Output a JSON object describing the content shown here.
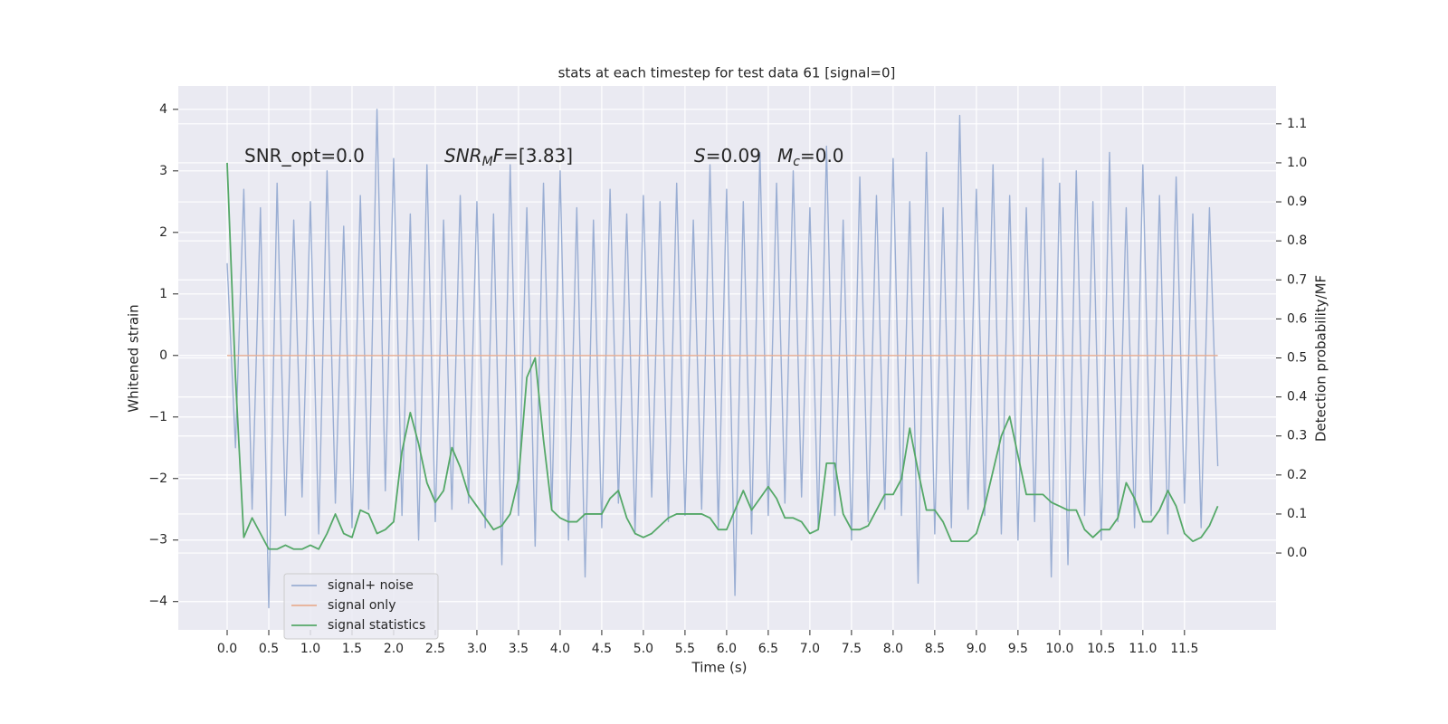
{
  "chart_data": {
    "type": "line",
    "title": "stats at each timestep for test data 61 [signal=0]",
    "xlabel": "Time (s)",
    "ylabel": "Whitened strain",
    "y2label": "Detection probability/MF",
    "annotations": [
      [
        {
          "text": "SNR_opt=0.0"
        }
      ],
      [
        {
          "text": "SNR",
          "style": "italic"
        },
        {
          "text": "M",
          "style": "sub"
        },
        {
          "text": "F",
          "style": "italic"
        },
        {
          "text": "=[3.83]"
        }
      ],
      [
        {
          "text": "S",
          "style": "italic"
        },
        {
          "text": "=0.09"
        }
      ],
      [
        {
          "text": "M",
          "style": "italic"
        },
        {
          "text": "c",
          "style": "sub"
        },
        {
          "text": "=0.0"
        }
      ]
    ],
    "x": [
      0,
      0.1,
      0.2,
      0.3,
      0.4,
      0.5,
      0.6,
      0.7,
      0.8,
      0.9,
      1,
      1.1,
      1.2,
      1.3,
      1.4,
      1.5,
      1.6,
      1.7,
      1.8,
      1.9,
      2,
      2.1,
      2.2,
      2.3,
      2.4,
      2.5,
      2.6,
      2.7,
      2.8,
      2.9,
      3,
      3.1,
      3.2,
      3.3,
      3.4,
      3.5,
      3.6,
      3.7,
      3.8,
      3.9,
      4,
      4.1,
      4.2,
      4.3,
      4.4,
      4.5,
      4.6,
      4.7,
      4.8,
      4.9,
      5,
      5.1,
      5.2,
      5.3,
      5.4,
      5.5,
      5.6,
      5.7,
      5.8,
      5.9,
      6,
      6.1,
      6.2,
      6.3,
      6.4,
      6.5,
      6.6,
      6.7,
      6.8,
      6.9,
      7,
      7.1,
      7.2,
      7.3,
      7.4,
      7.5,
      7.6,
      7.7,
      7.8,
      7.9,
      8,
      8.1,
      8.2,
      8.3,
      8.4,
      8.5,
      8.6,
      8.7,
      8.8,
      8.9,
      9,
      9.1,
      9.2,
      9.3,
      9.4,
      9.5,
      9.6,
      9.7,
      9.8,
      9.9,
      10,
      10.1,
      10.2,
      10.3,
      10.4,
      10.5,
      10.6,
      10.7,
      10.8,
      10.9,
      11,
      11.1,
      11.2,
      11.3,
      11.4,
      11.5,
      11.6,
      11.7,
      11.8,
      11.9
    ],
    "series": [
      {
        "name": "signal+ noise",
        "color": "#9aaed3",
        "axis": "y",
        "values": [
          1.5,
          -1.5,
          2.7,
          -2.5,
          2.4,
          -4.1,
          2.8,
          -2.6,
          2.2,
          -2.3,
          2.5,
          -2.9,
          3.0,
          -2.4,
          2.1,
          -2.8,
          2.6,
          -2.5,
          4.0,
          -2.2,
          3.2,
          -2.6,
          2.3,
          -3.0,
          3.1,
          -2.7,
          2.2,
          -2.5,
          2.6,
          -2.4,
          2.5,
          -2.8,
          2.3,
          -3.4,
          3.1,
          -2.6,
          2.4,
          -3.1,
          2.8,
          -2.5,
          3.0,
          -3.0,
          2.4,
          -3.6,
          2.2,
          -2.8,
          2.7,
          -2.4,
          2.3,
          -2.9,
          2.6,
          -2.3,
          2.5,
          -2.7,
          2.8,
          -2.6,
          2.2,
          -2.5,
          3.1,
          -2.8,
          2.7,
          -3.9,
          2.5,
          -2.9,
          3.3,
          -2.6,
          2.8,
          -2.4,
          3.0,
          -2.3,
          2.4,
          -2.8,
          3.4,
          -2.6,
          2.2,
          -3.0,
          2.9,
          -2.7,
          2.6,
          -2.5,
          3.2,
          -2.6,
          2.5,
          -3.7,
          3.3,
          -2.9,
          2.4,
          -2.8,
          3.9,
          -2.5,
          2.7,
          -2.6,
          3.1,
          -2.9,
          2.6,
          -3.0,
          2.4,
          -2.7,
          3.2,
          -3.6,
          2.8,
          -3.4,
          3.0,
          -2.6,
          2.5,
          -3.0,
          3.3,
          -2.7,
          2.4,
          -2.8,
          3.1,
          -2.6,
          2.6,
          -2.9,
          2.9,
          -2.4,
          2.3,
          -2.8,
          2.4,
          -1.8
        ]
      },
      {
        "name": "signal only",
        "color": "#e8ae93",
        "axis": "y",
        "values": [
          0,
          0,
          0,
          0,
          0,
          0,
          0,
          0,
          0,
          0,
          0,
          0,
          0,
          0,
          0,
          0,
          0,
          0,
          0,
          0,
          0,
          0,
          0,
          0,
          0,
          0,
          0,
          0,
          0,
          0,
          0,
          0,
          0,
          0,
          0,
          0,
          0,
          0,
          0,
          0,
          0,
          0,
          0,
          0,
          0,
          0,
          0,
          0,
          0,
          0,
          0,
          0,
          0,
          0,
          0,
          0,
          0,
          0,
          0,
          0,
          0,
          0,
          0,
          0,
          0,
          0,
          0,
          0,
          0,
          0,
          0,
          0,
          0,
          0,
          0,
          0,
          0,
          0,
          0,
          0,
          0,
          0,
          0,
          0,
          0,
          0,
          0,
          0,
          0,
          0,
          0,
          0,
          0,
          0,
          0,
          0,
          0,
          0,
          0,
          0,
          0,
          0,
          0,
          0,
          0,
          0,
          0,
          0,
          0,
          0,
          0,
          0,
          0,
          0,
          0,
          0,
          0,
          0,
          0,
          0
        ]
      },
      {
        "name": "signal statistics",
        "color": "#55a868",
        "axis": "y2",
        "values": [
          1.0,
          0.45,
          0.04,
          0.09,
          0.05,
          0.01,
          0.01,
          0.02,
          0.01,
          0.01,
          0.02,
          0.01,
          0.05,
          0.1,
          0.05,
          0.04,
          0.11,
          0.1,
          0.05,
          0.06,
          0.08,
          0.26,
          0.36,
          0.28,
          0.18,
          0.13,
          0.16,
          0.27,
          0.22,
          0.15,
          0.12,
          0.09,
          0.06,
          0.07,
          0.1,
          0.19,
          0.45,
          0.5,
          0.29,
          0.11,
          0.09,
          0.08,
          0.08,
          0.1,
          0.1,
          0.1,
          0.14,
          0.16,
          0.09,
          0.05,
          0.04,
          0.05,
          0.07,
          0.09,
          0.1,
          0.1,
          0.1,
          0.1,
          0.09,
          0.06,
          0.06,
          0.11,
          0.16,
          0.11,
          0.14,
          0.17,
          0.14,
          0.09,
          0.09,
          0.08,
          0.05,
          0.06,
          0.23,
          0.23,
          0.1,
          0.06,
          0.06,
          0.07,
          0.11,
          0.15,
          0.15,
          0.19,
          0.32,
          0.21,
          0.11,
          0.11,
          0.08,
          0.03,
          0.03,
          0.03,
          0.05,
          0.12,
          0.21,
          0.3,
          0.35,
          0.25,
          0.15,
          0.15,
          0.15,
          0.13,
          0.12,
          0.11,
          0.11,
          0.06,
          0.04,
          0.06,
          0.06,
          0.09,
          0.18,
          0.14,
          0.08,
          0.08,
          0.11,
          0.16,
          0.12,
          0.05,
          0.03,
          0.04,
          0.07,
          0.12
        ]
      }
    ],
    "xlim": [
      -0.587,
      12.6
    ],
    "xticks": [
      {
        "value": 0,
        "label": "0.0"
      },
      0.5,
      {
        "value": 1,
        "label": "1.0"
      },
      1.5,
      {
        "value": 2,
        "label": "2.0"
      },
      2.5,
      {
        "value": 3,
        "label": "3.0"
      },
      3.5,
      {
        "value": 4,
        "label": "4.0"
      },
      4.5,
      {
        "value": 5,
        "label": "5.0"
      },
      5.5,
      {
        "value": 6,
        "label": "6.0"
      },
      6.5,
      {
        "value": 7,
        "label": "7.0"
      },
      7.5,
      {
        "value": 8,
        "label": "8.0"
      },
      8.5,
      {
        "value": 9,
        "label": "9.0"
      },
      9.5,
      {
        "value": 10,
        "label": "10.0"
      },
      10.5,
      {
        "value": 11,
        "label": "11.0"
      },
      11.5
    ],
    "ylim": [
      -4.46,
      4.38
    ],
    "yticks": [
      {
        "value": -4,
        "label": "−4"
      },
      {
        "value": -3,
        "label": "−3"
      },
      {
        "value": -2,
        "label": "−2"
      },
      {
        "value": -1,
        "label": "−1"
      },
      0,
      1,
      2,
      3,
      4
    ],
    "y2lim": [
      -0.197,
      1.197
    ],
    "y2ticks": [
      {
        "value": 0,
        "label": "0.0"
      },
      0.1,
      0.2,
      0.3,
      0.4,
      0.5,
      0.6,
      0.7,
      0.8,
      0.9,
      {
        "value": 1,
        "label": "1.0"
      },
      1.1
    ],
    "grid": true,
    "legend": "lower left",
    "background": "#eaeaf2"
  }
}
